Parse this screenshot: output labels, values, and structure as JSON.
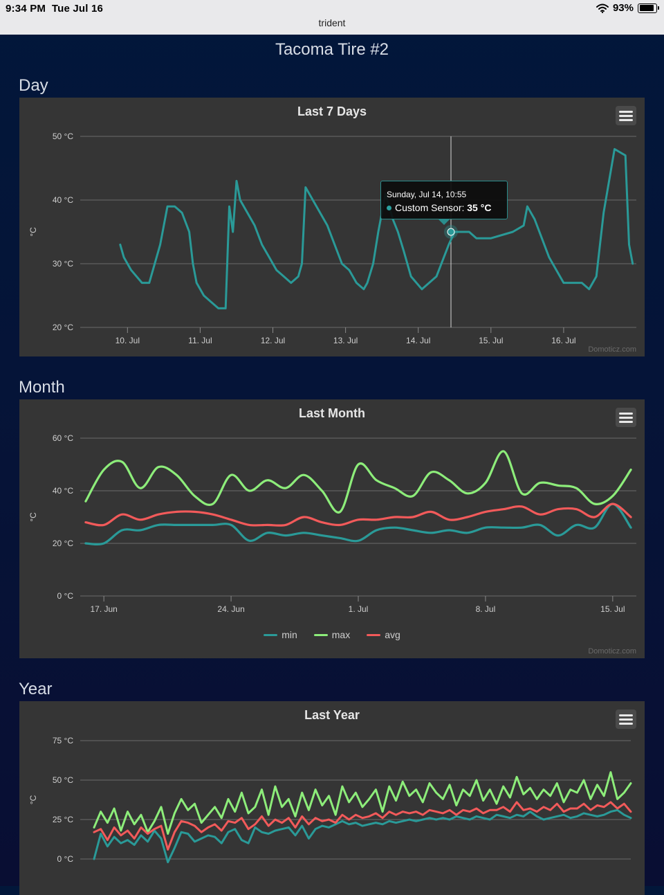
{
  "status_bar": {
    "time": "9:34 PM",
    "date": "Tue Jul 16",
    "battery": "93%",
    "app_name": "trident"
  },
  "page": {
    "title": "Tacoma Tire #2"
  },
  "sections": {
    "day": "Day",
    "month": "Month",
    "year": "Year"
  },
  "colors": {
    "teal": "#2a9a98",
    "green": "#8ded7a",
    "red": "#f25a5a",
    "panel": "#353535"
  },
  "credit": "Domoticz.com",
  "tooltip": {
    "title": "Sunday, Jul 14, 10:55",
    "series": "Custom Sensor: ",
    "value": "35 °C"
  },
  "chart_data": [
    {
      "type": "line",
      "title": "Last 7 Days",
      "ylabel": "°C",
      "ylim": [
        20,
        50
      ],
      "y_ticks": [
        "20 °C",
        "30 °C",
        "40 °C",
        "50 °C"
      ],
      "x_ticks": [
        "10. Jul",
        "11. Jul",
        "12. Jul",
        "13. Jul",
        "14. Jul",
        "15. Jul",
        "16. Jul"
      ],
      "x_tick_values": [
        10,
        11,
        12,
        13,
        14,
        15,
        16
      ],
      "xlim": [
        9.35,
        17.0
      ],
      "series": [
        {
          "name": "Custom Sensor",
          "x": [
            9.9,
            9.95,
            10.05,
            10.2,
            10.3,
            10.45,
            10.55,
            10.65,
            10.75,
            10.85,
            10.9,
            10.95,
            11.05,
            11.15,
            11.25,
            11.35,
            11.4,
            11.45,
            11.5,
            11.55,
            11.65,
            11.75,
            11.85,
            11.95,
            12.05,
            12.15,
            12.25,
            12.35,
            12.4,
            12.45,
            12.55,
            12.65,
            12.75,
            12.85,
            12.95,
            13.05,
            13.15,
            13.25,
            13.3,
            13.38,
            13.45,
            13.55,
            13.65,
            13.72,
            13.8,
            13.9,
            14.05,
            14.25,
            14.42,
            14.5,
            14.7,
            14.8,
            15.0,
            15.3,
            15.45,
            15.5,
            15.6,
            15.7,
            15.8,
            15.9,
            16.0,
            16.1,
            16.25,
            16.35,
            16.45,
            16.55,
            16.7,
            16.85,
            16.9,
            16.95
          ],
          "values": [
            33,
            31,
            29,
            27,
            27,
            33,
            39,
            39,
            38,
            35,
            30,
            27,
            25,
            24,
            23,
            23,
            39,
            35,
            43,
            40,
            38,
            36,
            33,
            31,
            29,
            28,
            27,
            28,
            30,
            42,
            40,
            38,
            36,
            33,
            30,
            29,
            27,
            26,
            27,
            30,
            35,
            41,
            37,
            35,
            32,
            28,
            26,
            28,
            33,
            35,
            35,
            34,
            34,
            35,
            36,
            39,
            37,
            34,
            31,
            29,
            27,
            27,
            27,
            26,
            28,
            38,
            48,
            47,
            33,
            30
          ]
        }
      ]
    },
    {
      "type": "line",
      "title": "Last Month",
      "ylabel": "°C",
      "ylim": [
        0,
        60
      ],
      "y_ticks": [
        "0 °C",
        "20 °C",
        "40 °C",
        "60 °C"
      ],
      "x_ticks": [
        "17. Jun",
        "24. Jun",
        "1. Jul",
        "8. Jul",
        "15. Jul"
      ],
      "x_tick_values": [
        0,
        7,
        14,
        21,
        28
      ],
      "xlim": [
        -1.3,
        29.3
      ],
      "legend": [
        "min",
        "max",
        "avg"
      ],
      "series": [
        {
          "name": "min",
          "x": [
            -1,
            0,
            1,
            2,
            3,
            4,
            5,
            6,
            7,
            8,
            9,
            10,
            11,
            12,
            13,
            14,
            15,
            16,
            17,
            18,
            19,
            20,
            21,
            22,
            23,
            24,
            25,
            26,
            27,
            28,
            29
          ],
          "values": [
            20,
            20,
            25,
            25,
            27,
            27,
            27,
            27,
            27,
            21,
            24,
            23,
            24,
            23,
            22,
            21,
            25,
            26,
            25,
            24,
            25,
            24,
            26,
            26,
            26,
            27,
            23,
            27,
            26,
            35,
            26
          ]
        },
        {
          "name": "max",
          "x": [
            -1,
            0,
            1,
            2,
            3,
            4,
            5,
            6,
            7,
            8,
            9,
            10,
            11,
            12,
            13,
            14,
            15,
            16,
            17,
            18,
            19,
            20,
            21,
            22,
            23,
            24,
            25,
            26,
            27,
            28,
            29
          ],
          "values": [
            36,
            48,
            51,
            41,
            49,
            46,
            38,
            35,
            46,
            40,
            44,
            41,
            46,
            40,
            32,
            50,
            44,
            41,
            38,
            47,
            44,
            39,
            43,
            55,
            39,
            43,
            42,
            41,
            35,
            38,
            48
          ]
        },
        {
          "name": "avg",
          "x": [
            -1,
            0,
            1,
            2,
            3,
            4,
            5,
            6,
            7,
            8,
            9,
            10,
            11,
            12,
            13,
            14,
            15,
            16,
            17,
            18,
            19,
            20,
            21,
            22,
            23,
            24,
            25,
            26,
            27,
            28,
            29
          ],
          "values": [
            28,
            27,
            31,
            29,
            31,
            32,
            32,
            31,
            29,
            27,
            27,
            27,
            30,
            28,
            27,
            29,
            29,
            30,
            30,
            32,
            29,
            30,
            32,
            33,
            34,
            31,
            33,
            33,
            30,
            35,
            30
          ]
        }
      ]
    },
    {
      "type": "line",
      "title": "Last Year",
      "ylabel": "°C",
      "ylim": [
        0,
        75
      ],
      "y_ticks": [
        "0 °C",
        "25 °C",
        "50 °C",
        "75 °C"
      ],
      "series": [
        {
          "name": "min",
          "x": [
            0,
            3,
            6,
            9,
            12,
            15,
            18,
            21,
            24,
            27,
            30,
            33,
            36,
            39,
            42,
            45,
            48,
            51,
            54,
            57,
            60,
            63,
            66,
            69,
            72,
            75,
            78,
            81,
            84,
            87,
            90,
            93,
            96,
            99,
            102,
            105,
            108,
            111,
            114,
            117,
            120,
            123,
            126,
            129,
            132,
            135,
            138,
            141,
            144,
            147,
            150,
            153,
            156,
            159,
            162,
            165,
            168,
            171,
            174,
            177,
            180,
            183,
            186,
            189,
            192,
            195,
            198,
            201,
            204,
            207,
            210,
            213,
            216,
            219,
            222,
            225,
            228,
            231,
            234,
            237,
            240
          ],
          "values": [
            0,
            16,
            8,
            14,
            10,
            12,
            9,
            15,
            11,
            18,
            13,
            -2,
            7,
            17,
            16,
            11,
            13,
            15,
            14,
            10,
            17,
            19,
            12,
            10,
            20,
            17,
            16,
            18,
            19,
            20,
            15,
            21,
            13,
            19,
            21,
            20,
            22,
            24,
            22,
            23,
            21,
            22,
            23,
            22,
            24,
            23,
            24,
            25,
            24,
            25,
            26,
            25,
            26,
            25,
            27,
            26,
            25,
            27,
            26,
            25,
            28,
            27,
            26,
            28,
            27,
            30,
            27,
            25,
            26,
            27,
            28,
            26,
            27,
            29,
            28,
            27,
            28,
            30,
            31,
            28,
            26
          ]
        },
        {
          "name": "max",
          "x": [
            0,
            3,
            6,
            9,
            12,
            15,
            18,
            21,
            24,
            27,
            30,
            33,
            36,
            39,
            42,
            45,
            48,
            51,
            54,
            57,
            60,
            63,
            66,
            69,
            72,
            75,
            78,
            81,
            84,
            87,
            90,
            93,
            96,
            99,
            102,
            105,
            108,
            111,
            114,
            117,
            120,
            123,
            126,
            129,
            132,
            135,
            138,
            141,
            144,
            147,
            150,
            153,
            156,
            159,
            162,
            165,
            168,
            171,
            174,
            177,
            180,
            183,
            186,
            189,
            192,
            195,
            198,
            201,
            204,
            207,
            210,
            213,
            216,
            219,
            222,
            225,
            228,
            231,
            234,
            237,
            240
          ],
          "values": [
            20,
            30,
            23,
            32,
            18,
            30,
            22,
            28,
            17,
            24,
            33,
            16,
            29,
            38,
            31,
            35,
            23,
            28,
            33,
            26,
            38,
            30,
            42,
            29,
            33,
            44,
            28,
            46,
            33,
            38,
            27,
            42,
            31,
            44,
            34,
            40,
            28,
            46,
            36,
            42,
            33,
            38,
            44,
            30,
            46,
            37,
            49,
            40,
            44,
            36,
            48,
            42,
            38,
            47,
            34,
            44,
            40,
            50,
            37,
            44,
            35,
            46,
            39,
            52,
            41,
            45,
            38,
            44,
            40,
            48,
            36,
            44,
            42,
            50,
            38,
            47,
            40,
            55,
            38,
            42,
            48
          ]
        },
        {
          "name": "avg",
          "x": [
            0,
            3,
            6,
            9,
            12,
            15,
            18,
            21,
            24,
            27,
            30,
            33,
            36,
            39,
            42,
            45,
            48,
            51,
            54,
            57,
            60,
            63,
            66,
            69,
            72,
            75,
            78,
            81,
            84,
            87,
            90,
            93,
            96,
            99,
            102,
            105,
            108,
            111,
            114,
            117,
            120,
            123,
            126,
            129,
            132,
            135,
            138,
            141,
            144,
            147,
            150,
            153,
            156,
            159,
            162,
            165,
            168,
            171,
            174,
            177,
            180,
            183,
            186,
            189,
            192,
            195,
            198,
            201,
            204,
            207,
            210,
            213,
            216,
            219,
            222,
            225,
            228,
            231,
            234,
            237,
            240
          ],
          "values": [
            17,
            19,
            12,
            20,
            15,
            18,
            13,
            20,
            16,
            19,
            21,
            6,
            17,
            24,
            23,
            21,
            17,
            20,
            22,
            18,
            24,
            23,
            26,
            19,
            22,
            27,
            21,
            25,
            23,
            26,
            20,
            27,
            22,
            26,
            24,
            25,
            23,
            28,
            25,
            28,
            26,
            27,
            29,
            26,
            30,
            28,
            30,
            29,
            30,
            28,
            31,
            30,
            29,
            31,
            28,
            31,
            30,
            32,
            29,
            31,
            31,
            33,
            30,
            36,
            31,
            32,
            30,
            33,
            31,
            35,
            30,
            32,
            32,
            35,
            31,
            34,
            33,
            36,
            32,
            35,
            30
          ]
        }
      ]
    }
  ]
}
